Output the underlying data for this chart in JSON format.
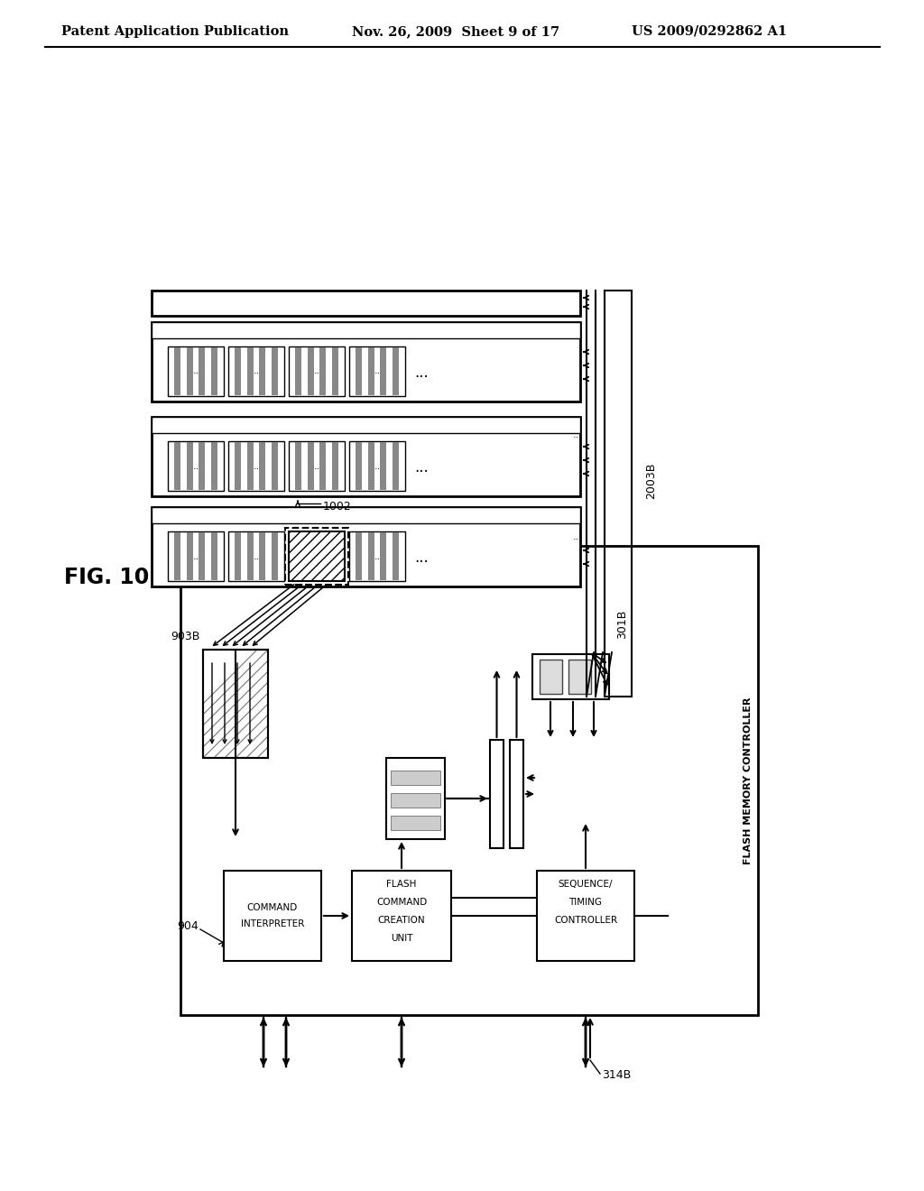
{
  "header_left": "Patent Application Publication",
  "header_mid": "Nov. 26, 2009  Sheet 9 of 17",
  "header_right": "US 2009/0292862 A1",
  "fig_label": "FIG. 10",
  "bg": "#ffffff",
  "lc": "#000000",
  "label_903B": "903B",
  "label_1002": "1002",
  "label_904": "904",
  "label_301B": "301B",
  "label_2003B": "2003B",
  "label_314B": "314B",
  "label_ci_1": "COMMAND",
  "label_ci_2": "INTERPRETER",
  "label_fcc_1": "FLASH",
  "label_fcc_2": "COMMAND",
  "label_fcc_3": "CREATION",
  "label_fcc_4": "UNIT",
  "label_seq_1": "SEQUENCE/",
  "label_seq_2": "TIMING",
  "label_seq_3": "CONTROLLER",
  "label_fmc": "FLASH MEMORY CONTROLLER"
}
